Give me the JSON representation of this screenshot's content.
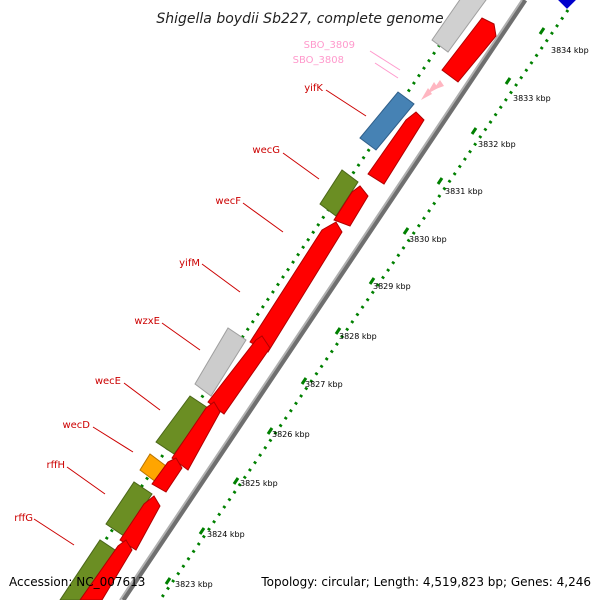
{
  "title": "Shigella boydii Sb227, complete genome",
  "accession": "Accession: NC_007613",
  "topology": "Topology: circular; Length: 4,519,823 bp; Genes: 4,246",
  "colors": {
    "forward_track": "#ff0000",
    "reverse_track": "#ff0000",
    "gray_gene": "#cccccc",
    "olive_gene": "#6b8e23",
    "blue_gene": "#4682b4",
    "orange_gene": "#ffa500",
    "pink_gene": "#ffb6c1",
    "label_red": "#cc0000",
    "label_pink": "#ff99cc",
    "ruler_tick": "#008000",
    "backbone": "#808080"
  },
  "gene_labels": [
    {
      "name": "SBO_3809",
      "color": "pink"
    },
    {
      "name": "SBO_3808",
      "color": "pink"
    },
    {
      "name": "yifK",
      "color": "red"
    },
    {
      "name": "wecG",
      "color": "red"
    },
    {
      "name": "wecF",
      "color": "red"
    },
    {
      "name": "yifM",
      "color": "red"
    },
    {
      "name": "wzxE",
      "color": "red"
    },
    {
      "name": "wecE",
      "color": "red"
    },
    {
      "name": "wecD",
      "color": "red"
    },
    {
      "name": "rffH",
      "color": "red"
    },
    {
      "name": "rffG",
      "color": "red"
    }
  ],
  "ruler_labels": [
    "3834 kbp",
    "3833 kbp",
    "3832 kbp",
    "3831 kbp",
    "3830 kbp",
    "3829 kbp",
    "3828 kbp",
    "3827 kbp",
    "3826 kbp",
    "3825 kbp",
    "3824 kbp",
    "3823 kbp"
  ]
}
